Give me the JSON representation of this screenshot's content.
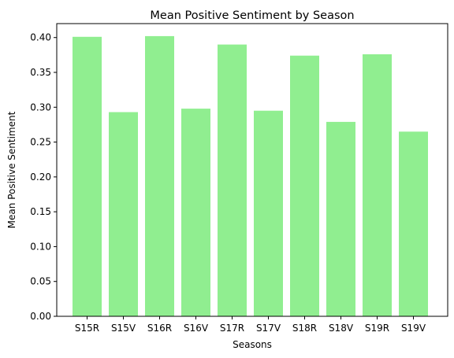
{
  "chart_data": {
    "type": "bar",
    "title": "Mean Positive Sentiment by Season",
    "xlabel": "Seasons",
    "ylabel": "Mean Positive Sentiment",
    "categories": [
      "S15R",
      "S15V",
      "S16R",
      "S16V",
      "S17R",
      "S17V",
      "S18R",
      "S18V",
      "S19R",
      "S19V"
    ],
    "values": [
      0.401,
      0.293,
      0.402,
      0.298,
      0.39,
      0.295,
      0.374,
      0.279,
      0.376,
      0.265
    ],
    "ylim": [
      0,
      0.42
    ],
    "yticks": [
      "0.00",
      "0.05",
      "0.10",
      "0.15",
      "0.20",
      "0.25",
      "0.30",
      "0.35",
      "0.40"
    ],
    "grid": false,
    "legend": "none",
    "bar_color": "#90ee90"
  }
}
